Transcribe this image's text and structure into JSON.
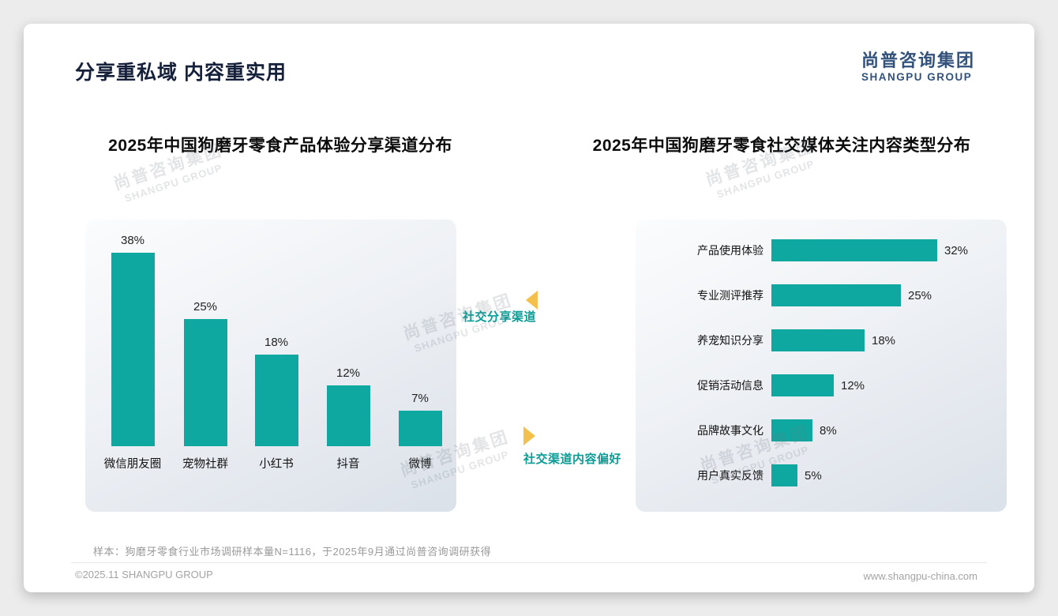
{
  "page": {
    "title": "分享重私域 内容重实用",
    "logo_cn": "尚普咨询集团",
    "logo_en": "SHANGPU GROUP",
    "watermark_cn": "尚普咨询集团",
    "watermark_en": "SHANGPU GROUP",
    "note": "样本：狗磨牙零食行业市场调研样本量N=1116，于2025年9月通过尚普咨询调研获得",
    "footer_left": "©2025.11 SHANGPU GROUP",
    "footer_right": "www.shangpu-china.com"
  },
  "annotations": {
    "left_pointer_label": "社交分享渠道",
    "right_pointer_label": "社交渠道内容偏好"
  },
  "colors": {
    "bar_teal": "#0fa8a0",
    "annotation_teal": "#0a9d96",
    "pointer_gold": "#f3c04b",
    "logo_blue": "#32527b"
  },
  "chart_data": [
    {
      "type": "bar",
      "orientation": "vertical",
      "title": "2025年中国狗磨牙零食产品体验分享渠道分布",
      "categories": [
        "微信朋友圈",
        "宠物社群",
        "小红书",
        "抖音",
        "微博"
      ],
      "values": [
        38,
        25,
        18,
        12,
        7
      ],
      "unit": "%",
      "ylim": [
        0,
        40
      ],
      "grid": false,
      "legend": false,
      "bar_color": "#0fa8a0"
    },
    {
      "type": "bar",
      "orientation": "horizontal",
      "title": "2025年中国狗磨牙零食社交媒体关注内容类型分布",
      "categories": [
        "产品使用体验",
        "专业测评推荐",
        "养宠知识分享",
        "促销活动信息",
        "品牌故事文化",
        "用户真实反馈"
      ],
      "values": [
        32,
        25,
        18,
        12,
        8,
        5
      ],
      "unit": "%",
      "xlim": [
        0,
        35
      ],
      "grid": false,
      "legend": false,
      "bar_color": "#0fa8a0"
    }
  ]
}
